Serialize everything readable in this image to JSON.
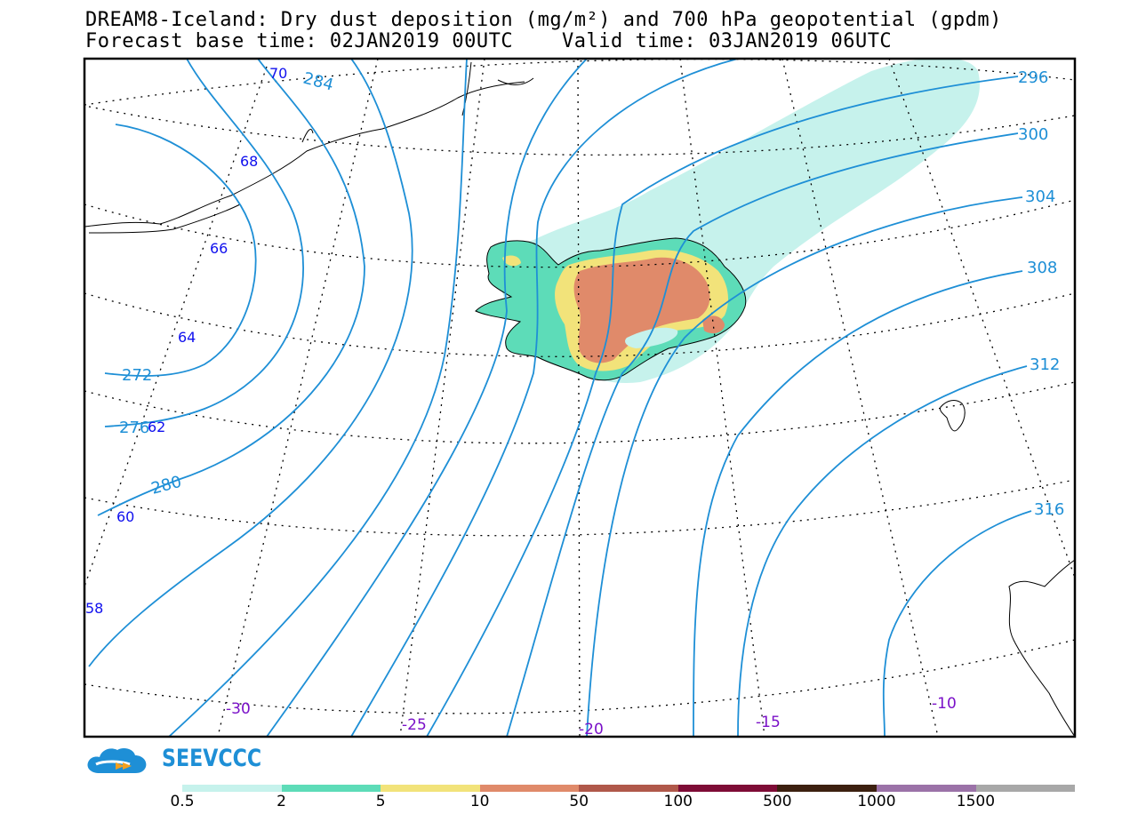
{
  "header": {
    "line1": "DREAM8-Iceland: Dry dust deposition (mg/m²) and 700 hPa geopotential (gpdm)",
    "line2": "Forecast base time: 02JAN2019 00UTC    Valid time: 03JAN2019 06UTC"
  },
  "map": {
    "contour_labels": [
      "284",
      "296",
      "300",
      "304",
      "308",
      "312",
      "316",
      "272",
      "276",
      "280"
    ],
    "latitude_labels": [
      "70",
      "68",
      "66",
      "64",
      "62",
      "60",
      "58"
    ],
    "longitude_labels": [
      "-30",
      "-25",
      "-20",
      "-15",
      "-10"
    ],
    "colors": {
      "contour": "#1e8fd6",
      "lat_label": "#1010ee",
      "lon_label": "#7a10c8",
      "dust_low": "#c6f2ec",
      "dust_mid": "#5ddcb8",
      "dust_yellow": "#f2e37a",
      "dust_orange": "#e08a6a"
    }
  },
  "logo": {
    "text": "SEEVCCC"
  },
  "legend": {
    "colors": [
      "#c6f2ec",
      "#5ddcb8",
      "#f2e37a",
      "#e08a6a",
      "#b0584a",
      "#7e0c36",
      "#3c2010",
      "#9b72a8",
      "#a8a8a8"
    ],
    "ticks": [
      "0.5",
      "2",
      "5",
      "10",
      "50",
      "100",
      "500",
      "1000",
      "1500"
    ]
  }
}
